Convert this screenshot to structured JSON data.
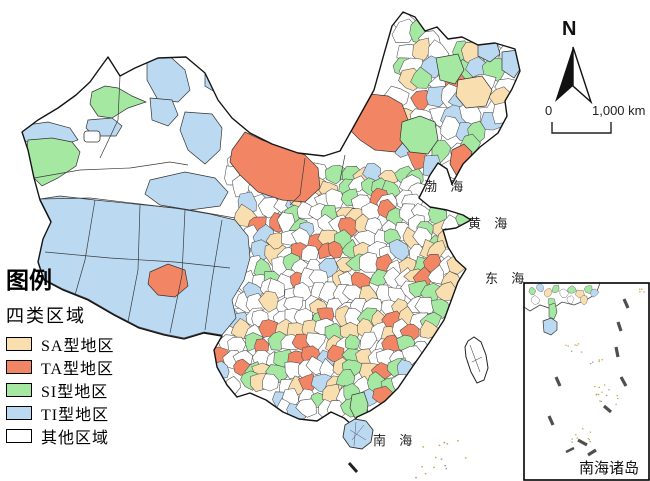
{
  "palette": {
    "sa": "#F9DFAF",
    "ta": "#F28563",
    "si": "#A5E8A2",
    "ti": "#BCD9F2",
    "other": "#FFFFFF",
    "outline": "#141414",
    "cell_border": "#4D4D4D",
    "dash_line": "#4F4F4F",
    "island_dot": "#C9A84C"
  },
  "legend": {
    "title": "图例",
    "subtitle": "四类区域",
    "items": [
      {
        "label": "SA型地区",
        "color_key": "sa"
      },
      {
        "label": "TA型地区",
        "color_key": "ta"
      },
      {
        "label": "SI型地区",
        "color_key": "si"
      },
      {
        "label": "TI型地区",
        "color_key": "ti"
      },
      {
        "label": "其他区域",
        "color_key": "other"
      }
    ]
  },
  "north_arrow": {
    "label": "N"
  },
  "scale_bar": {
    "zero": "0",
    "max": "1,000 km"
  },
  "seas": [
    {
      "name": "渤 海"
    },
    {
      "name": "黄 海"
    },
    {
      "name": "东 海"
    },
    {
      "name": "南 海"
    }
  ],
  "inset": {
    "label": "南海诸岛"
  }
}
